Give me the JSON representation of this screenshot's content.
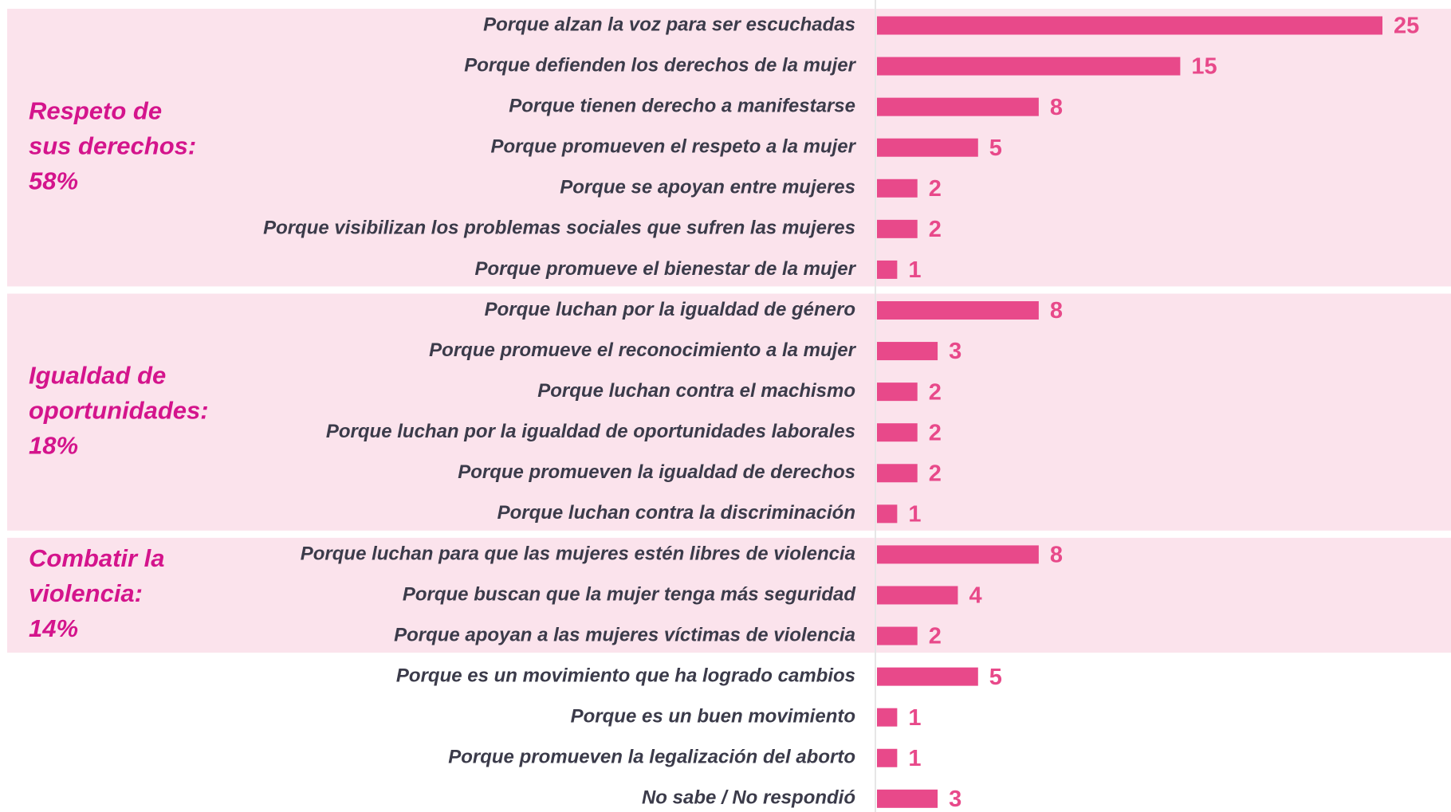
{
  "chart_data": {
    "type": "bar",
    "color": "#e8498a",
    "band_color": "#fbe3ec",
    "groups": [
      {
        "name": [
          "Respeto de",
          "sus derechos:"
        ],
        "share": 58,
        "share_label": "58%",
        "categories": [
          "Porque alzan la voz para ser escuchadas",
          "Porque defienden los derechos de la mujer",
          "Porque tienen derecho a manifestarse",
          "Porque promueven el respeto a la mujer",
          "Porque se apoyan entre mujeres",
          "Porque visibilizan los problemas sociales que sufren las mujeres",
          "Porque promueve el bienestar de la mujer"
        ],
        "values": [
          25,
          15,
          8,
          5,
          2,
          2,
          1
        ]
      },
      {
        "name": [
          "Igualdad de",
          "oportunidades:"
        ],
        "share": 18,
        "share_label": "18%",
        "categories": [
          "Porque luchan por la igualdad de género",
          "Porque promueve el reconocimiento a la mujer",
          "Porque luchan contra el machismo",
          "Porque luchan por la igualdad de oportunidades laborales",
          "Porque promueven la igualdad de derechos",
          "Porque luchan contra la discriminación"
        ],
        "values": [
          8,
          3,
          2,
          2,
          2,
          1
        ]
      },
      {
        "name": [
          "Combatir la",
          "violencia:"
        ],
        "share": 14,
        "share_label": "14%",
        "categories": [
          "Porque luchan para que las mujeres estén libres de violencia",
          "Porque buscan que la mujer tenga más seguridad",
          "Porque apoyan a las mujeres víctimas de violencia"
        ],
        "values": [
          8,
          4,
          2
        ]
      },
      {
        "categories": [
          "Porque es un movimiento que ha logrado cambios",
          "Porque es un buen movimiento",
          "Porque promueven la legalización del aborto",
          "No sabe / No respondió"
        ],
        "values": [
          5,
          1,
          1,
          3
        ]
      }
    ]
  }
}
